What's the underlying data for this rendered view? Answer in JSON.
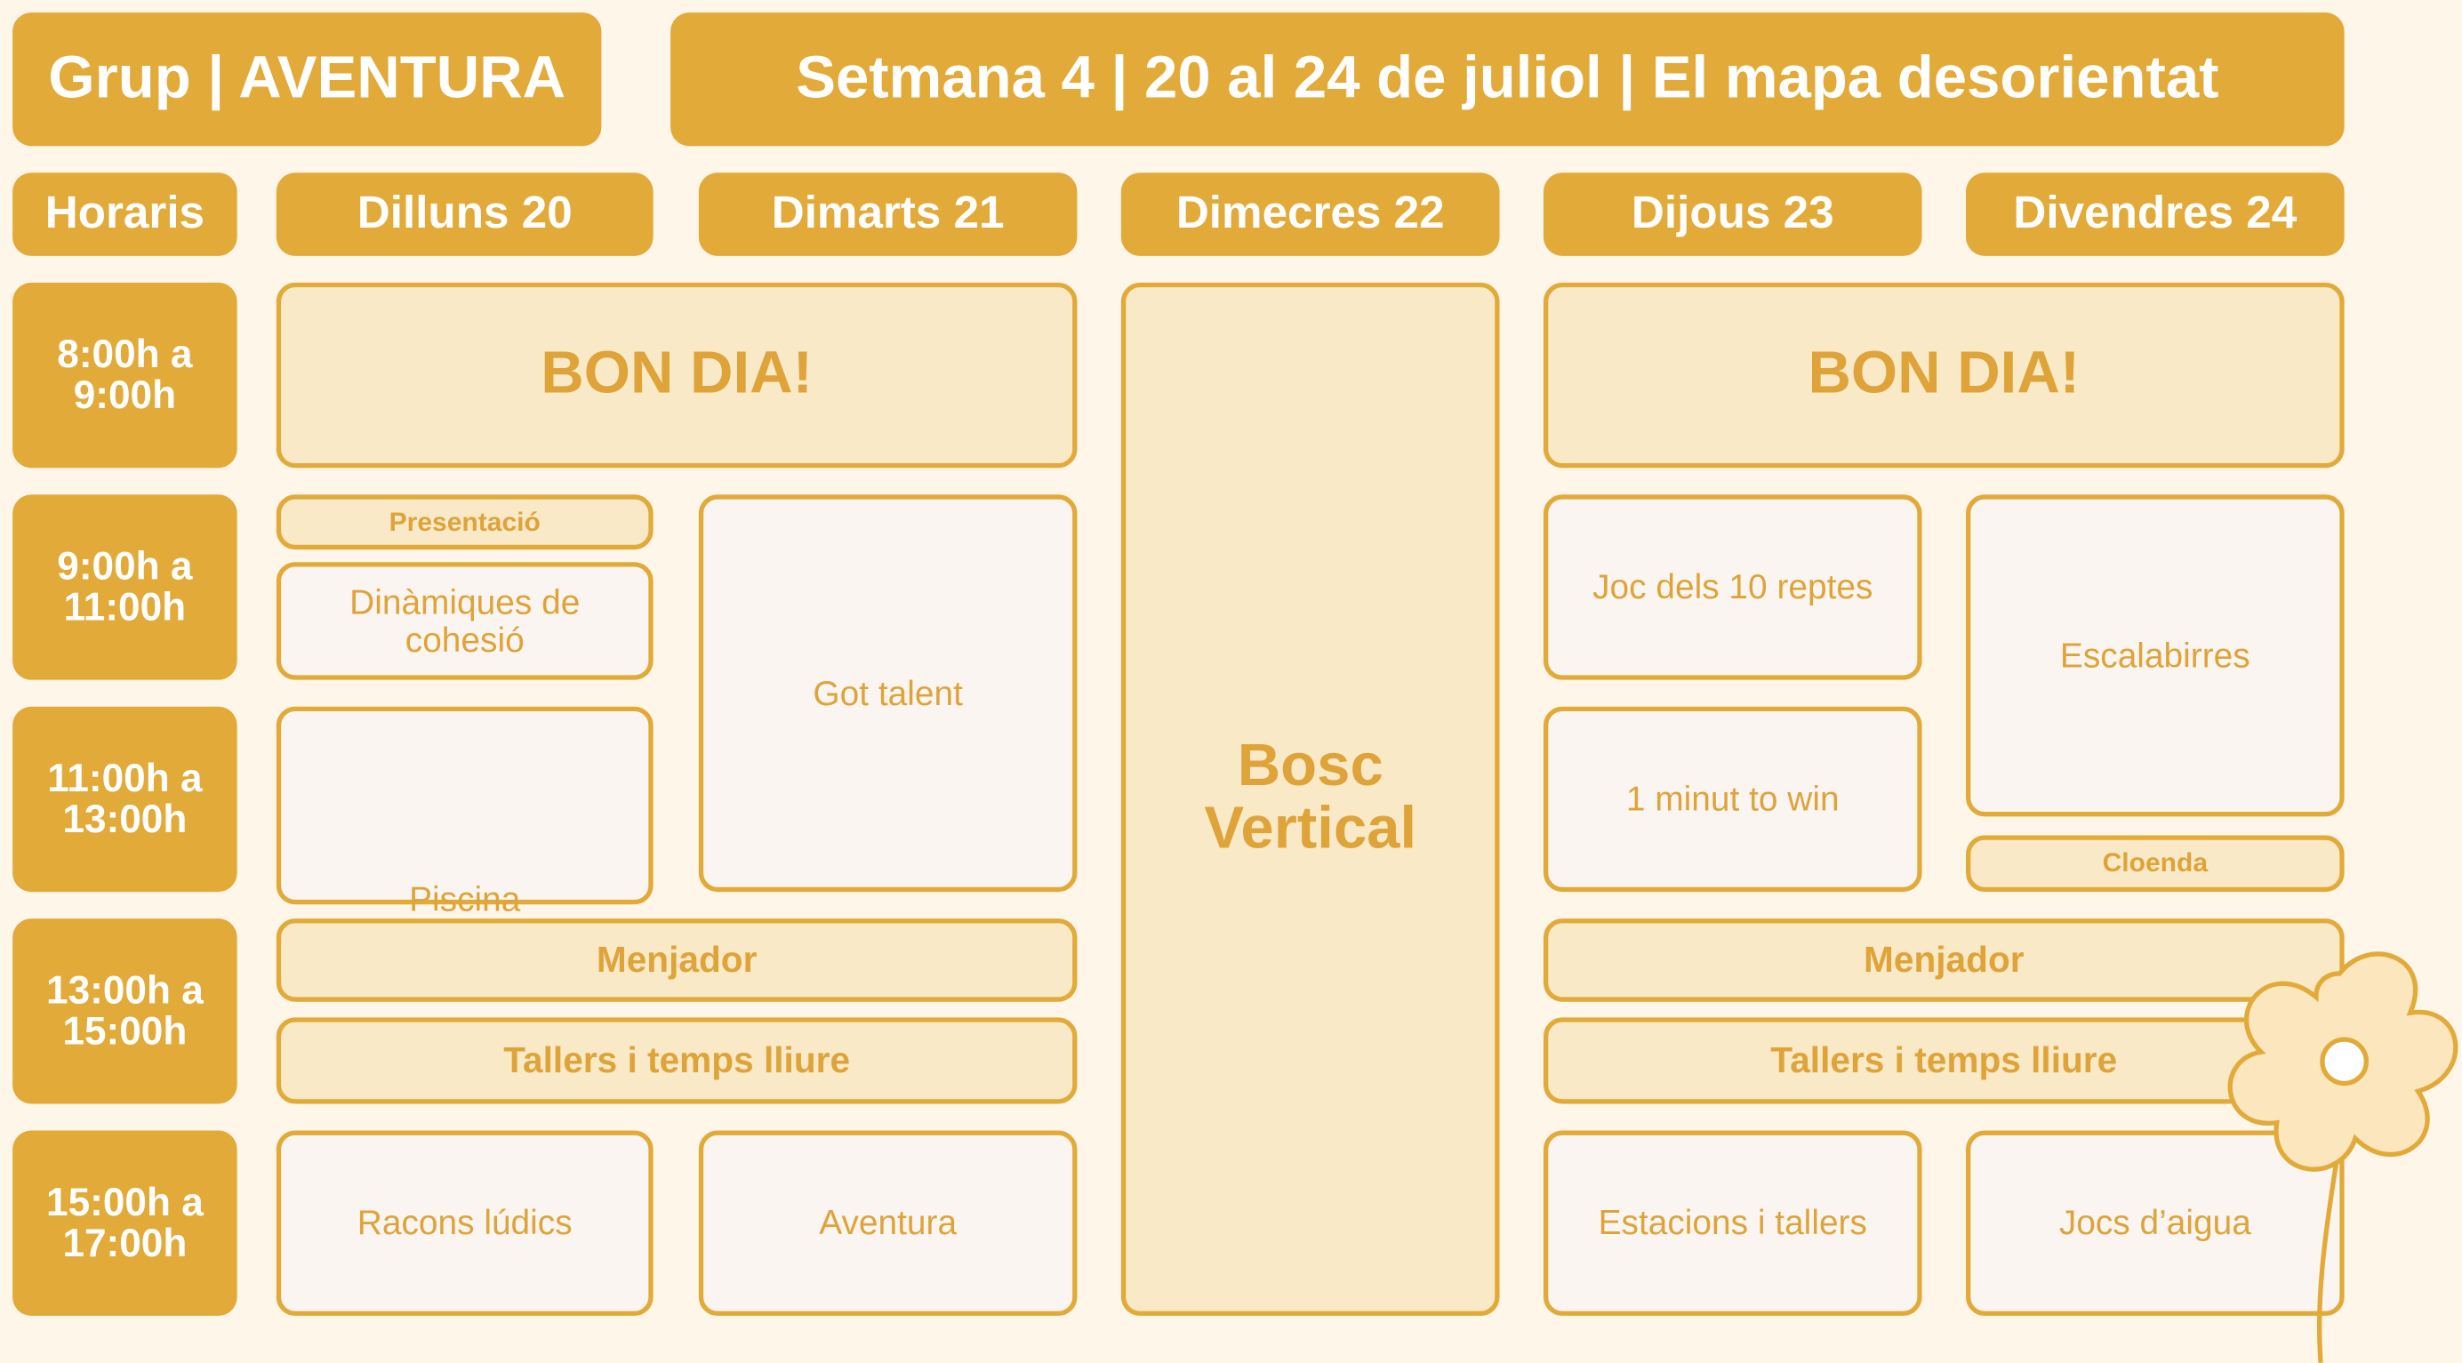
{
  "header": {
    "group": "Grup | AVENTURA",
    "week": "Setmana 4 | 20 al 24 de juliol | El mapa desorientat"
  },
  "columns": [
    "Horaris",
    "Dilluns 20",
    "Dimarts 21",
    "Dimecres 22",
    "Dijous 23",
    "Divendres 24"
  ],
  "times": [
    "8:00h a 9:00h",
    "9:00h a 11:00h",
    "11:00h a 13:00h",
    "13:00h a 15:00h",
    "15:00h a 17:00h"
  ],
  "activities": [
    "BON DIA!",
    "Presentació",
    "Dinàmiques de cohesió",
    "Got talent",
    "Piscina",
    "Bosc Vertical",
    "BON DIA!",
    "Joc dels 10 reptes",
    "Escalabirres",
    "1 minut to win",
    "Cloenda",
    "Menjador",
    "Tallers i temps lliure",
    "Menjador",
    "Tallers i temps lliure",
    "Racons lúdics",
    "Aventura",
    "Estacions i tallers",
    "Jocs d’aigua"
  ]
}
